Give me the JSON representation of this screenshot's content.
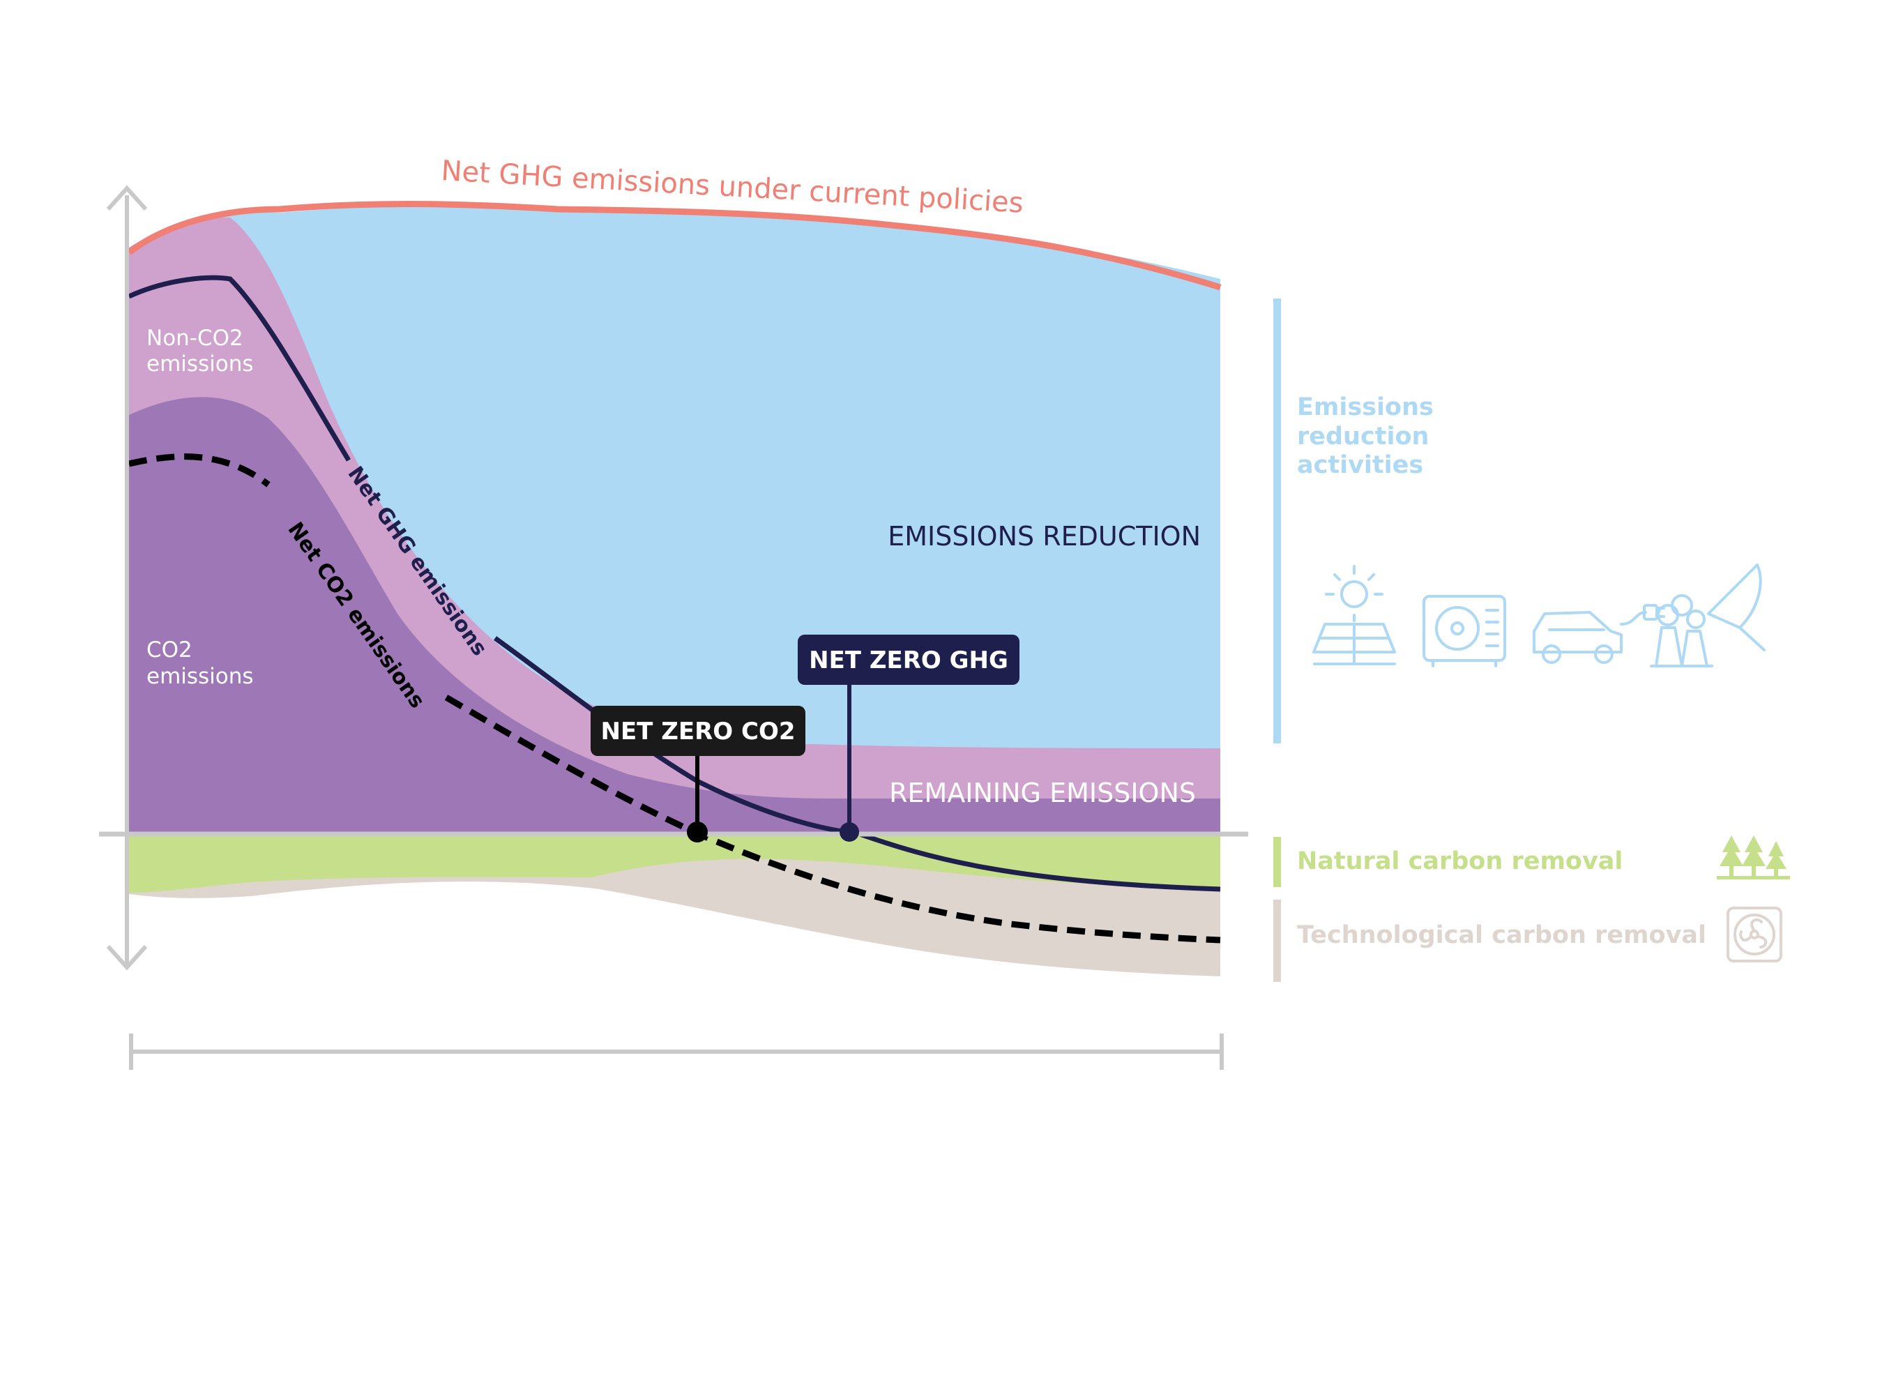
{
  "title": "Net GHG emissions under current policies",
  "labels": {
    "non_co2": [
      "Non-CO2",
      "emissions"
    ],
    "co2": [
      "CO2",
      "emissions"
    ],
    "emissions_reduction": "EMISSIONS REDUCTION",
    "remaining_emissions": "REMAINING EMISSIONS",
    "net_ghg_line": "Net GHG emissions",
    "net_co2_line": "Net CO2 emissions"
  },
  "callouts": {
    "net_zero_co2": "NET ZERO CO2",
    "net_zero_ghg": "NET ZERO GHG"
  },
  "legend": {
    "reduction": [
      "Emissions",
      "reduction",
      "activities"
    ],
    "natural_removal": "Natural carbon removal",
    "tech_removal": "Technological carbon removal"
  },
  "icons": {
    "reduction_activities": [
      "solar-panel-icon",
      "heat-pump-icon",
      "electric-car-icon",
      "industry-capture-icon"
    ],
    "natural_removal": "forest-icon",
    "tech_removal": "fan-icon"
  },
  "colors": {
    "current_policies": "#F07F74",
    "reduction": "#ADD9F4",
    "non_co2": "#CFA2CE",
    "co2": "#9E78B6",
    "natural_removal": "#C6DF8A",
    "tech_removal": "#DED5CF",
    "net_ghg": "#1E1F4C",
    "net_co2": "#000000",
    "axis": "#C9C9C9"
  }
}
